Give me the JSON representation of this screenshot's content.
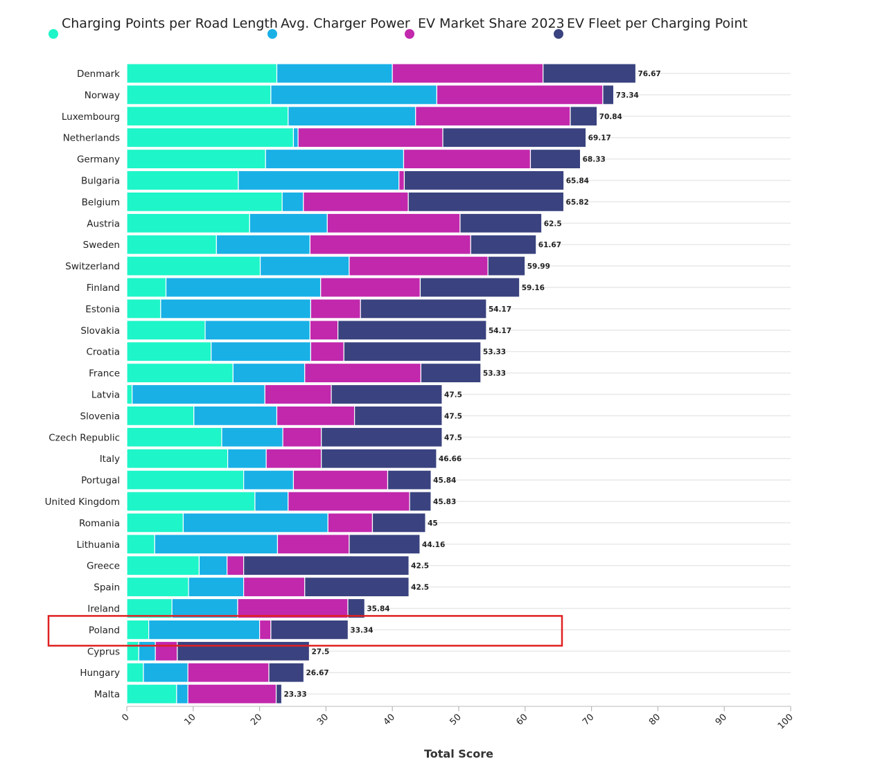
{
  "chart_data": {
    "type": "bar",
    "orientation": "horizontal",
    "stacked": true,
    "xlabel": "Total Score",
    "xlim": [
      0,
      100
    ],
    "xticks": [
      "0",
      "10",
      "20",
      "30",
      "40",
      "50",
      "60",
      "70",
      "80",
      "90",
      "100"
    ],
    "legend_position": "top",
    "grid": true,
    "highlight": "Poland",
    "highlight_color": "#e02020",
    "categories": [
      "Denmark",
      "Norway",
      "Luxembourg",
      "Netherlands",
      "Germany",
      "Bulgaria",
      "Belgium",
      "Austria",
      "Sweden",
      "Switzerland",
      "Finland",
      "Estonia",
      "Slovakia",
      "Croatia",
      "France",
      "Latvia",
      "Slovenia",
      "Czech Republic",
      "Italy",
      "Portugal",
      "United Kingdom",
      "Romania",
      "Lithuania",
      "Greece",
      "Spain",
      "Ireland",
      "Poland",
      "Cyprus",
      "Hungary",
      "Malta"
    ],
    "totals": [
      "76.67",
      "73.34",
      "70.84",
      "69.17",
      "68.33",
      "65.84",
      "65.82",
      "62.5",
      "61.67",
      "59.99",
      "59.16",
      "54.17",
      "54.17",
      "53.33",
      "53.33",
      "47.5",
      "47.5",
      "47.5",
      "46.66",
      "45.84",
      "45.83",
      "45",
      "44.16",
      "42.5",
      "42.5",
      "35.84",
      "33.34",
      "27.5",
      "26.67",
      "23.33"
    ],
    "series": [
      {
        "name": "Charging Points per Road Length",
        "color": "#1ef5c8",
        "values": [
          22.6,
          21.7,
          24.3,
          25.1,
          20.9,
          16.8,
          23.4,
          18.5,
          13.5,
          20.1,
          5.9,
          5.1,
          11.8,
          12.7,
          16.0,
          0.8,
          10.1,
          14.3,
          15.2,
          17.6,
          19.3,
          8.5,
          4.2,
          10.9,
          9.3,
          6.8,
          3.3,
          1.8,
          2.5,
          7.5
        ]
      },
      {
        "name": "Avg. Charger Power",
        "color": "#19b0e6",
        "values": [
          17.4,
          25.0,
          19.2,
          0.7,
          20.8,
          24.2,
          3.2,
          11.7,
          14.1,
          13.4,
          23.3,
          22.6,
          15.8,
          15.0,
          10.8,
          20.0,
          12.5,
          9.2,
          5.8,
          7.5,
          5.0,
          21.8,
          18.5,
          4.2,
          8.3,
          9.9,
          16.7,
          2.5,
          6.7,
          1.7
        ]
      },
      {
        "name": "EV Market Share 2023",
        "color": "#c128ac",
        "values": [
          22.7,
          25.0,
          23.3,
          21.8,
          19.1,
          0.8,
          15.8,
          20.0,
          24.2,
          20.9,
          15.0,
          7.5,
          4.2,
          5.0,
          17.5,
          10.0,
          11.7,
          5.8,
          8.3,
          14.2,
          18.3,
          6.7,
          10.8,
          2.5,
          9.2,
          16.6,
          1.7,
          3.3,
          12.2,
          13.3
        ]
      },
      {
        "name": "EV Fleet per Charging Point",
        "color": "#3a437f",
        "values": [
          13.97,
          1.64,
          4.04,
          21.57,
          7.53,
          24.04,
          23.42,
          12.3,
          9.87,
          5.59,
          14.96,
          18.97,
          22.37,
          20.63,
          9.03,
          16.7,
          13.2,
          18.2,
          17.36,
          6.54,
          3.23,
          8.0,
          10.66,
          24.9,
          15.7,
          2.54,
          11.64,
          19.9,
          5.27,
          0.83
        ]
      }
    ]
  }
}
